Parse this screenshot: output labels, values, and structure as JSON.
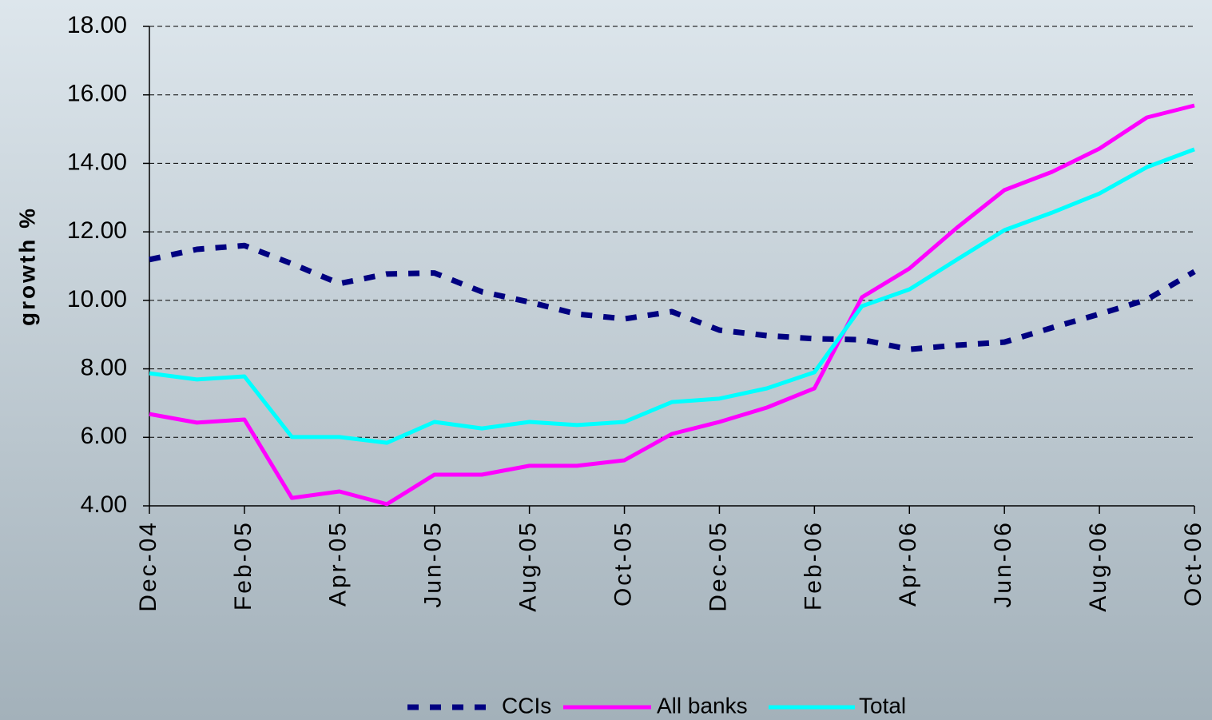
{
  "chart_data": {
    "type": "line",
    "ylabel": "growth %",
    "categories": [
      "Dec-04",
      null,
      "Feb-05",
      null,
      "Apr-05",
      null,
      "Jun-05",
      null,
      "Aug-05",
      null,
      "Oct-05",
      null,
      "Dec-05",
      null,
      "Feb-06",
      null,
      "Apr-06",
      null,
      "Jun-06",
      null,
      "Aug-06",
      null,
      "Oct-06"
    ],
    "series": [
      {
        "name": "CCIs",
        "color": "#000080",
        "dashed": true,
        "values": [
          11.19,
          11.49,
          11.6,
          11.07,
          10.49,
          10.77,
          10.8,
          10.25,
          9.95,
          9.6,
          9.46,
          9.67,
          9.13,
          8.97,
          8.88,
          8.85,
          8.57,
          8.69,
          8.78,
          9.2,
          9.6,
          10.02,
          10.84
        ]
      },
      {
        "name": "All banks",
        "color": "#ff00ff",
        "dashed": false,
        "values": [
          6.68,
          6.43,
          6.52,
          4.23,
          4.42,
          4.05,
          4.91,
          4.91,
          5.17,
          5.17,
          5.33,
          6.1,
          6.45,
          6.87,
          7.43,
          10.09,
          10.93,
          12.12,
          13.22,
          13.75,
          14.43,
          15.34,
          15.69
        ]
      },
      {
        "name": "Total",
        "color": "#00ffff",
        "dashed": false,
        "values": [
          7.87,
          7.69,
          7.78,
          6.01,
          6.01,
          5.84,
          6.45,
          6.26,
          6.45,
          6.36,
          6.45,
          7.03,
          7.13,
          7.43,
          7.9,
          9.83,
          10.32,
          11.19,
          12.05,
          12.56,
          13.12,
          13.89,
          14.41
        ]
      }
    ],
    "ylim": [
      4,
      18
    ],
    "yticks": [
      {
        "value": 4,
        "label": "4.00"
      },
      {
        "value": 6,
        "label": "6.00"
      },
      {
        "value": 8,
        "label": "8.00"
      },
      {
        "value": 10,
        "label": "10.00"
      },
      {
        "value": 12,
        "label": "12.00"
      },
      {
        "value": 14,
        "label": "14.00"
      },
      {
        "value": 16,
        "label": "16.00"
      },
      {
        "value": 18,
        "label": "18.00"
      }
    ],
    "grid": true,
    "legend": "bottom"
  }
}
